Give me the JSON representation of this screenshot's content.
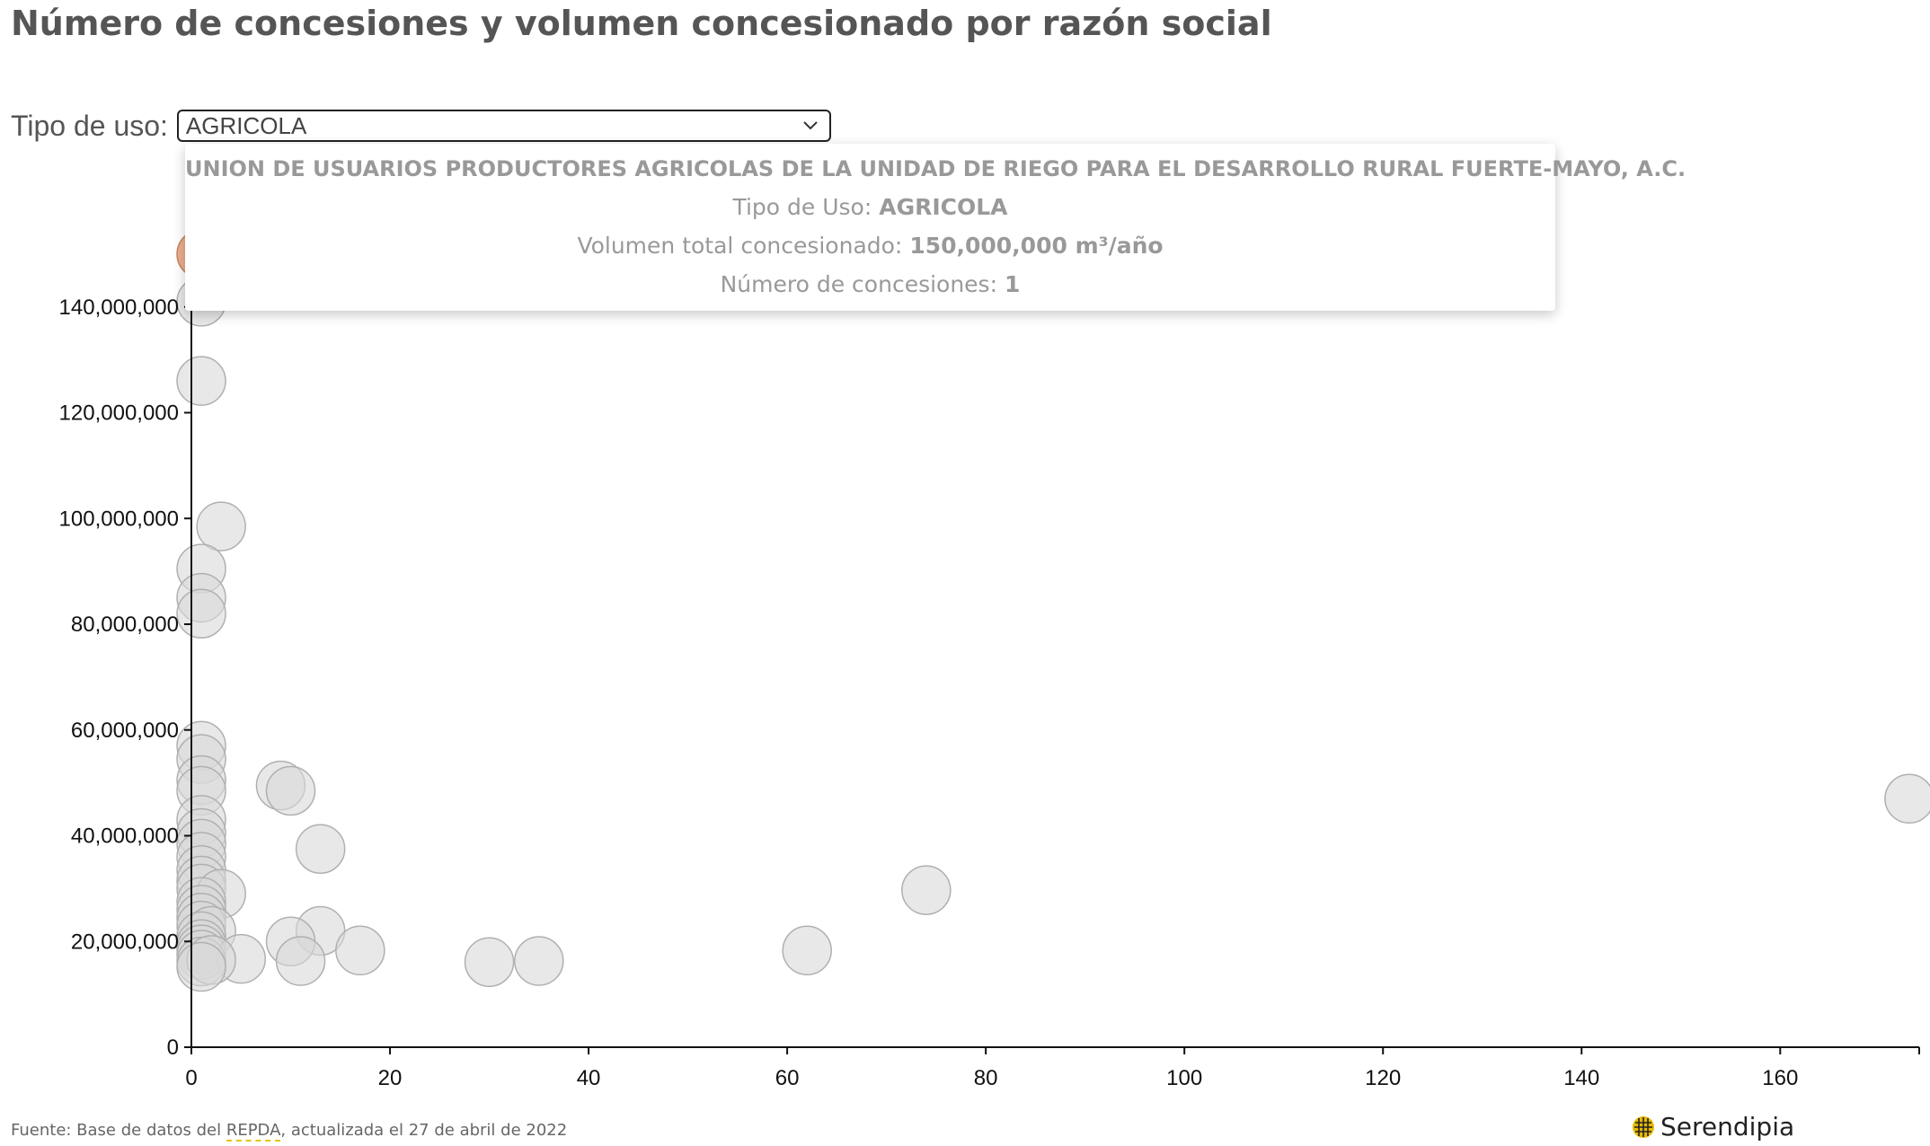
{
  "page": {
    "title": "Número de concesiones y volumen concesionado por razón social"
  },
  "filter": {
    "label": "Tipo de uso:",
    "selected": "AGRICOLA",
    "icon": "chevron-down-icon"
  },
  "tooltip": {
    "name": "UNION DE USUARIOS PRODUCTORES AGRICOLAS DE LA UNIDAD DE RIEGO PARA EL DESARROLLO RURAL FUERTE-MAYO, A.C.",
    "uso_label": "Tipo de Uso:",
    "uso_value": "AGRICOLA",
    "volumen_label": "Volumen total concesionado:",
    "volumen_value": "150,000,000 m³/año",
    "concesiones_label": "Número de concesiones:",
    "concesiones_value": "1"
  },
  "footer": {
    "source_prefix": "Fuente: Base de datos del ",
    "source_link": "REPDA",
    "source_suffix": ", actualizada el 27 de abril de 2022",
    "brand": "Serendipia",
    "brand_icon": "serendipia-logo-icon"
  },
  "colors": {
    "point_fill": "#d9d9d9",
    "point_stroke": "#b0b0b0",
    "highlight_fill": "#e8a07a",
    "tooltip_text": "#999999",
    "title": "#555555"
  },
  "chart_data": {
    "type": "scatter",
    "title": "Número de concesiones y volumen concesionado por razón social",
    "xlabel": "",
    "ylabel": "",
    "xlim": [
      0,
      174
    ],
    "ylim": [
      0,
      160000000
    ],
    "x_ticks": [
      0,
      20,
      40,
      60,
      80,
      100,
      120,
      140,
      160
    ],
    "y_ticks": [
      0,
      20000000,
      40000000,
      60000000,
      80000000,
      100000000,
      120000000,
      140000000
    ],
    "x_tick_labels": [
      "0",
      "20",
      "40",
      "60",
      "80",
      "100",
      "120",
      "140",
      "160"
    ],
    "y_tick_labels": [
      "0",
      "20,000,000",
      "40,000,000",
      "60,000,000",
      "80,000,000",
      "100,000,000",
      "120,000,000",
      "140,000,000"
    ],
    "grid": false,
    "highlighted_index": 0,
    "points": [
      {
        "x": 1,
        "y": 150000000
      },
      {
        "x": 1,
        "y": 141000000
      },
      {
        "x": 1,
        "y": 126000000
      },
      {
        "x": 3,
        "y": 98500000
      },
      {
        "x": 1,
        "y": 90500000
      },
      {
        "x": 1,
        "y": 85000000
      },
      {
        "x": 1,
        "y": 82000000
      },
      {
        "x": 1,
        "y": 57000000
      },
      {
        "x": 1,
        "y": 54500000
      },
      {
        "x": 1,
        "y": 50500000
      },
      {
        "x": 1,
        "y": 48500000
      },
      {
        "x": 9,
        "y": 49500000
      },
      {
        "x": 10,
        "y": 48500000
      },
      {
        "x": 1,
        "y": 43000000
      },
      {
        "x": 1,
        "y": 40500000
      },
      {
        "x": 1,
        "y": 38500000
      },
      {
        "x": 13,
        "y": 37500000
      },
      {
        "x": 1,
        "y": 36000000
      },
      {
        "x": 1,
        "y": 33500000
      },
      {
        "x": 1,
        "y": 31500000
      },
      {
        "x": 1,
        "y": 30000000
      },
      {
        "x": 3,
        "y": 29000000
      },
      {
        "x": 74,
        "y": 29700000
      },
      {
        "x": 173,
        "y": 47000000
      },
      {
        "x": 1,
        "y": 27500000
      },
      {
        "x": 1,
        "y": 26000000
      },
      {
        "x": 1,
        "y": 24500000
      },
      {
        "x": 1,
        "y": 23000000
      },
      {
        "x": 2,
        "y": 22000000
      },
      {
        "x": 13,
        "y": 22000000
      },
      {
        "x": 1,
        "y": 21000000
      },
      {
        "x": 10,
        "y": 20000000
      },
      {
        "x": 1,
        "y": 19500000
      },
      {
        "x": 1,
        "y": 18500000
      },
      {
        "x": 17,
        "y": 18300000
      },
      {
        "x": 62,
        "y": 18300000
      },
      {
        "x": 1,
        "y": 17500000
      },
      {
        "x": 5,
        "y": 16700000
      },
      {
        "x": 11,
        "y": 16300000
      },
      {
        "x": 30,
        "y": 16100000
      },
      {
        "x": 35,
        "y": 16300000
      },
      {
        "x": 1,
        "y": 16200000
      },
      {
        "x": 2,
        "y": 16500000
      },
      {
        "x": 1,
        "y": 15200000
      }
    ]
  }
}
